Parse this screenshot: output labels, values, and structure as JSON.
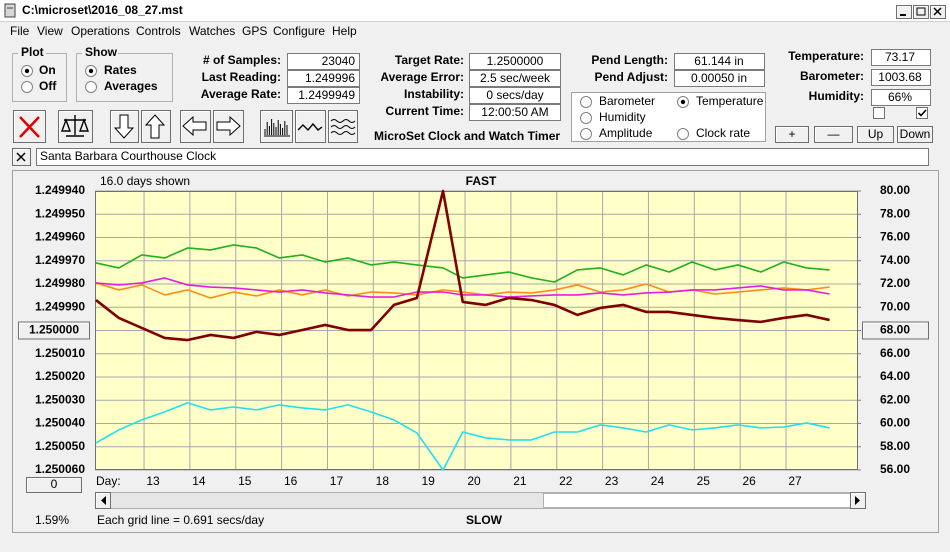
{
  "window": {
    "title": "C:\\microset\\2016_08_27.mst"
  },
  "menu": [
    "File",
    "View",
    "Operations",
    "Controls",
    "Watches",
    "GPS",
    "Configure",
    "Help"
  ],
  "plot": {
    "title": "Plot",
    "options": [
      "On",
      "Off"
    ],
    "selected": "On"
  },
  "show": {
    "title": "Show",
    "options": [
      "Rates",
      "Averages"
    ],
    "selected": "Rates"
  },
  "stats_left": [
    {
      "label": "# of Samples:",
      "value": "23040"
    },
    {
      "label": "Last Reading:",
      "value": "1.249996"
    },
    {
      "label": "Average Rate:",
      "value": "1.2499949"
    }
  ],
  "stats_mid": [
    {
      "label": "Target Rate:",
      "value": "1.2500000"
    },
    {
      "label": "Average Error:",
      "value": "2.5 sec/week"
    },
    {
      "label": "Instability:",
      "value": "0 secs/day"
    },
    {
      "label": "Current Time:",
      "value": "12:00:50 AM"
    }
  ],
  "app_title": "MicroSet Clock and Watch Timer",
  "pendulum": [
    {
      "label": "Pend Length:",
      "value": "61.144 in"
    },
    {
      "label": "Pend Adjust:",
      "value": "0.00050 in"
    }
  ],
  "sensors": [
    {
      "label": "Temperature:",
      "value": "73.17"
    },
    {
      "label": "Barometer:",
      "value": "1003.68"
    },
    {
      "label": "Humidity:",
      "value": "66%"
    }
  ],
  "sensor_checkboxes": [
    false,
    true
  ],
  "buttons": [
    "+",
    "—",
    "Up",
    "Down"
  ],
  "clock_name": "Santa Barbara Courthouse Clock",
  "chart_controls": {
    "zoom": "1.59%",
    "offset": "0"
  },
  "chart_data": {
    "type": "line",
    "days_shown": "16.0 days shown",
    "top_label": "FAST",
    "bottom_label": "SLOW",
    "grid_note": "Each grid line = 0.691 secs/day",
    "x_label": "Day:",
    "selected_series": "Temperature",
    "reference_tick": 6,
    "grid": true,
    "xlim": [
      11.93,
      28.57
    ],
    "xticks": [
      13,
      14,
      15,
      16,
      17,
      18,
      19,
      20,
      21,
      22,
      23,
      24,
      25,
      26,
      27
    ],
    "ylim": [
      1.25006,
      1.24994
    ],
    "yticks": [
      {
        "value": 1.24994,
        "label": "1.249940"
      },
      {
        "value": 1.24995,
        "label": "1.249950"
      },
      {
        "value": 1.24996,
        "label": "1.249960"
      },
      {
        "value": 1.24997,
        "label": "1.249970"
      },
      {
        "value": 1.24998,
        "label": "1.249980"
      },
      {
        "value": 1.24999,
        "label": "1.249990"
      },
      {
        "value": 1.25,
        "label": "1.250000"
      },
      {
        "value": 1.25001,
        "label": "1.250010"
      },
      {
        "value": 1.25002,
        "label": "1.250020"
      },
      {
        "value": 1.25003,
        "label": "1.250030"
      },
      {
        "value": 1.25004,
        "label": "1.250040"
      },
      {
        "value": 1.25005,
        "label": "1.250050"
      },
      {
        "value": 1.25006,
        "label": "1.250060"
      }
    ],
    "y2lim": [
      56,
      80
    ],
    "y2ticks": [
      {
        "value": 80,
        "label": "80.00"
      },
      {
        "value": 78,
        "label": "78.00"
      },
      {
        "value": 76,
        "label": "76.00"
      },
      {
        "value": 74,
        "label": "74.00"
      },
      {
        "value": 72,
        "label": "72.00"
      },
      {
        "value": 70,
        "label": "70.00"
      },
      {
        "value": 68,
        "label": "68.00"
      },
      {
        "value": 66,
        "label": "66.00"
      },
      {
        "value": 64,
        "label": "64.00"
      },
      {
        "value": 62,
        "label": "62.00"
      },
      {
        "value": 60,
        "label": "60.00"
      },
      {
        "value": 58,
        "label": "58.00"
      },
      {
        "value": 56,
        "label": "56.00"
      }
    ],
    "x": [
      11.95,
      12.45,
      12.95,
      13.45,
      13.95,
      14.45,
      14.95,
      15.45,
      15.95,
      16.45,
      16.95,
      17.45,
      17.95,
      18.45,
      18.95,
      19.52,
      19.95,
      20.45,
      20.95,
      21.45,
      21.95,
      22.45,
      22.95,
      23.45,
      23.95,
      24.45,
      24.95,
      25.45,
      25.95,
      26.45,
      26.95,
      27.45,
      27.95
    ],
    "series": [
      {
        "name": "Barometer",
        "color": "#ff8c1a",
        "label_color": "#ff8000",
        "axis": "y2",
        "values": [
          72.09,
          71.49,
          71.92,
          71.06,
          71.49,
          70.8,
          71.31,
          70.97,
          71.49,
          71.06,
          71.49,
          70.97,
          71.31,
          71.23,
          71.06,
          71.49,
          71.31,
          71.06,
          71.31,
          71.23,
          71.49,
          71.92,
          71.31,
          71.49,
          72.0,
          71.31,
          71.49,
          71.14,
          71.31,
          71.49,
          71.66,
          71.49,
          71.74
        ]
      },
      {
        "name": "Temperature",
        "color": "#20b020",
        "label_color": "#00a000",
        "axis": "y2",
        "values": [
          73.81,
          73.38,
          74.5,
          74.24,
          75.1,
          74.93,
          75.36,
          75.1,
          74.24,
          74.5,
          73.89,
          74.24,
          73.64,
          73.89,
          73.64,
          73.38,
          72.52,
          72.78,
          73.03,
          72.52,
          72.17,
          73.21,
          73.38,
          72.78,
          73.64,
          73.03,
          73.89,
          73.21,
          73.64,
          73.03,
          73.89,
          73.38,
          73.21
        ]
      },
      {
        "name": "Humidity",
        "color": "#e020e0",
        "label_color": "#d000d0",
        "axis": "y2",
        "values": [
          72.09,
          71.92,
          72.09,
          72.52,
          71.92,
          71.74,
          71.66,
          71.49,
          71.31,
          71.49,
          71.23,
          71.06,
          70.88,
          70.88,
          71.31,
          71.31,
          71.06,
          71.06,
          70.88,
          70.97,
          71.06,
          71.06,
          71.23,
          71.06,
          71.23,
          71.31,
          71.49,
          71.49,
          71.66,
          71.83,
          71.49,
          71.49,
          71.14
        ]
      },
      {
        "name": "Amplitude",
        "color": "#20e0f0",
        "label_color": "#00c0f0",
        "axis": "y2",
        "values": [
          58.33,
          59.45,
          60.31,
          61.0,
          61.77,
          61.17,
          61.42,
          61.17,
          61.6,
          61.34,
          61.17,
          61.6,
          61.0,
          60.31,
          59.19,
          56.0,
          59.27,
          58.76,
          58.59,
          58.59,
          59.27,
          59.27,
          59.88,
          59.62,
          59.27,
          59.88,
          59.45,
          59.62,
          59.88,
          59.62,
          59.7,
          60.05,
          59.62
        ]
      },
      {
        "name": "Clock rate",
        "color": "#800000",
        "label_color": "#800000",
        "axis": "y",
        "values": [
          1.2499869,
          1.2499946,
          1.2499989,
          1.2500032,
          1.2500041,
          1.2500019,
          1.2500032,
          1.2500006,
          1.2500019,
          1.2499998,
          1.2499976,
          1.2499998,
          1.2499998,
          1.249989,
          1.249986,
          1.24994,
          1.2499877,
          1.249989,
          1.249986,
          1.2499869,
          1.249989,
          1.2499933,
          1.2499903,
          1.249989,
          1.249992,
          1.249992,
          1.2499933,
          1.2499946,
          1.2499955,
          1.2499963,
          1.2499946,
          1.2499933,
          1.2499955
        ]
      }
    ]
  }
}
